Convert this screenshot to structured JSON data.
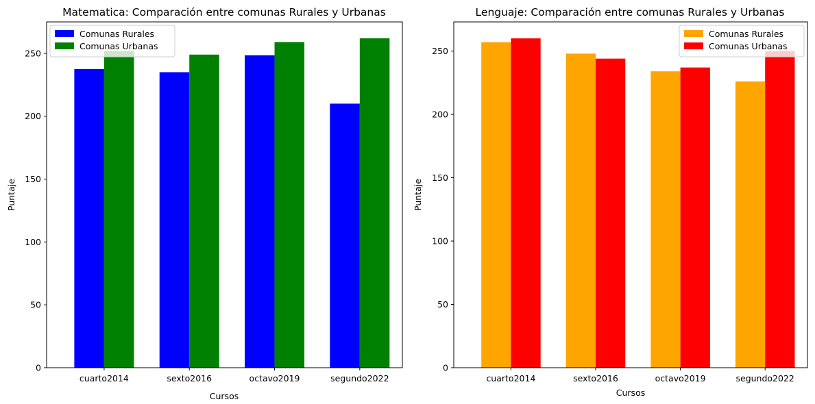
{
  "chart_data": [
    {
      "type": "bar",
      "title": "Matematica: Comparación entre comunas Rurales y Urbanas",
      "xlabel": "Cursos",
      "ylabel": "Puntaje",
      "categories": [
        "cuarto2014",
        "sexto2016",
        "octavo2019",
        "segundo2022"
      ],
      "ylim": [
        0,
        275
      ],
      "yticks": [
        0,
        50,
        100,
        150,
        200,
        250
      ],
      "legend_position": "upper-left",
      "grid": false,
      "series": [
        {
          "name": "Comunas Rurales",
          "color": "#0000ff",
          "values": [
            237.5,
            235,
            248.5,
            210
          ]
        },
        {
          "name": "Comunas Urbanas",
          "color": "#008000",
          "values": [
            252,
            249,
            259,
            262
          ]
        }
      ]
    },
    {
      "type": "bar",
      "title": "Lenguaje: Comparación entre comunas Rurales y Urbanas",
      "xlabel": "Cursos",
      "ylabel": "Puntaje",
      "categories": [
        "cuarto2014",
        "sexto2016",
        "octavo2019",
        "segundo2022"
      ],
      "ylim": [
        0,
        273
      ],
      "yticks": [
        0,
        50,
        100,
        150,
        200,
        250
      ],
      "legend_position": "upper-right",
      "grid": false,
      "series": [
        {
          "name": "Comunas Rurales",
          "color": "#ffa500",
          "values": [
            257,
            248,
            234,
            226
          ]
        },
        {
          "name": "Comunas Urbanas",
          "color": "#ff0000",
          "values": [
            260,
            244,
            237,
            250
          ]
        }
      ]
    }
  ]
}
